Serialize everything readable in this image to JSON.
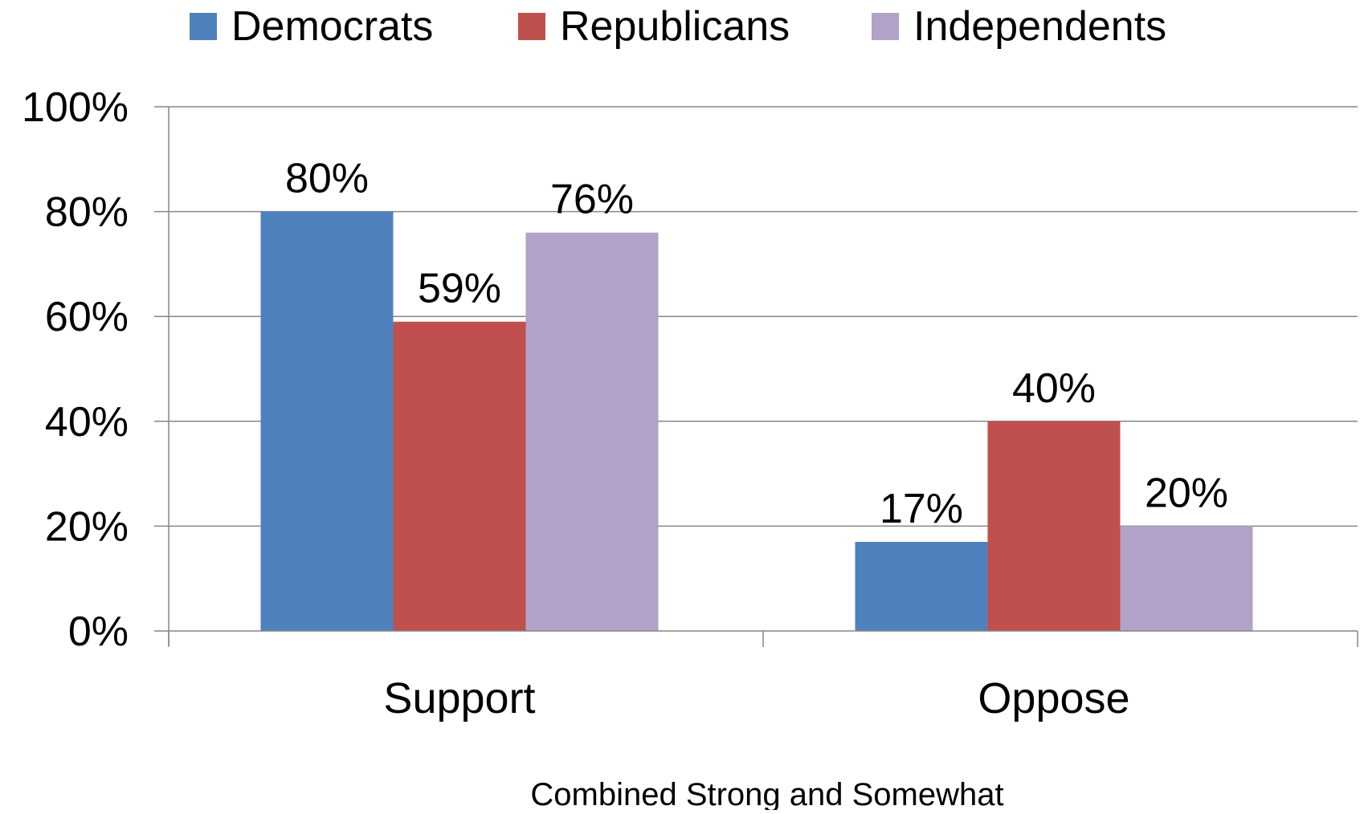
{
  "chart_data": {
    "type": "bar",
    "title": "",
    "subtitle": "",
    "xlabel": "Combined Strong and Somewhat",
    "ylabel": "",
    "categories": [
      "Support",
      "Oppose"
    ],
    "series": [
      {
        "name": "Democrats",
        "color": "#4F81BD",
        "values": [
          80,
          17
        ],
        "labels": [
          "80%",
          "17%"
        ]
      },
      {
        "name": "Republicans",
        "color": "#C0504D",
        "values": [
          59,
          40
        ],
        "labels": [
          "59%",
          "40%"
        ]
      },
      {
        "name": "Independents",
        "color": "#B2A2C7",
        "values": [
          76,
          20
        ],
        "labels": [
          "76%",
          "20%"
        ]
      }
    ],
    "ylim": [
      0,
      100
    ],
    "yticks": [
      0,
      20,
      40,
      60,
      80,
      100
    ],
    "ytick_labels": [
      "0%",
      "20%",
      "40%",
      "60%",
      "80%",
      "100%"
    ],
    "grid": true,
    "legend": "top-center"
  }
}
